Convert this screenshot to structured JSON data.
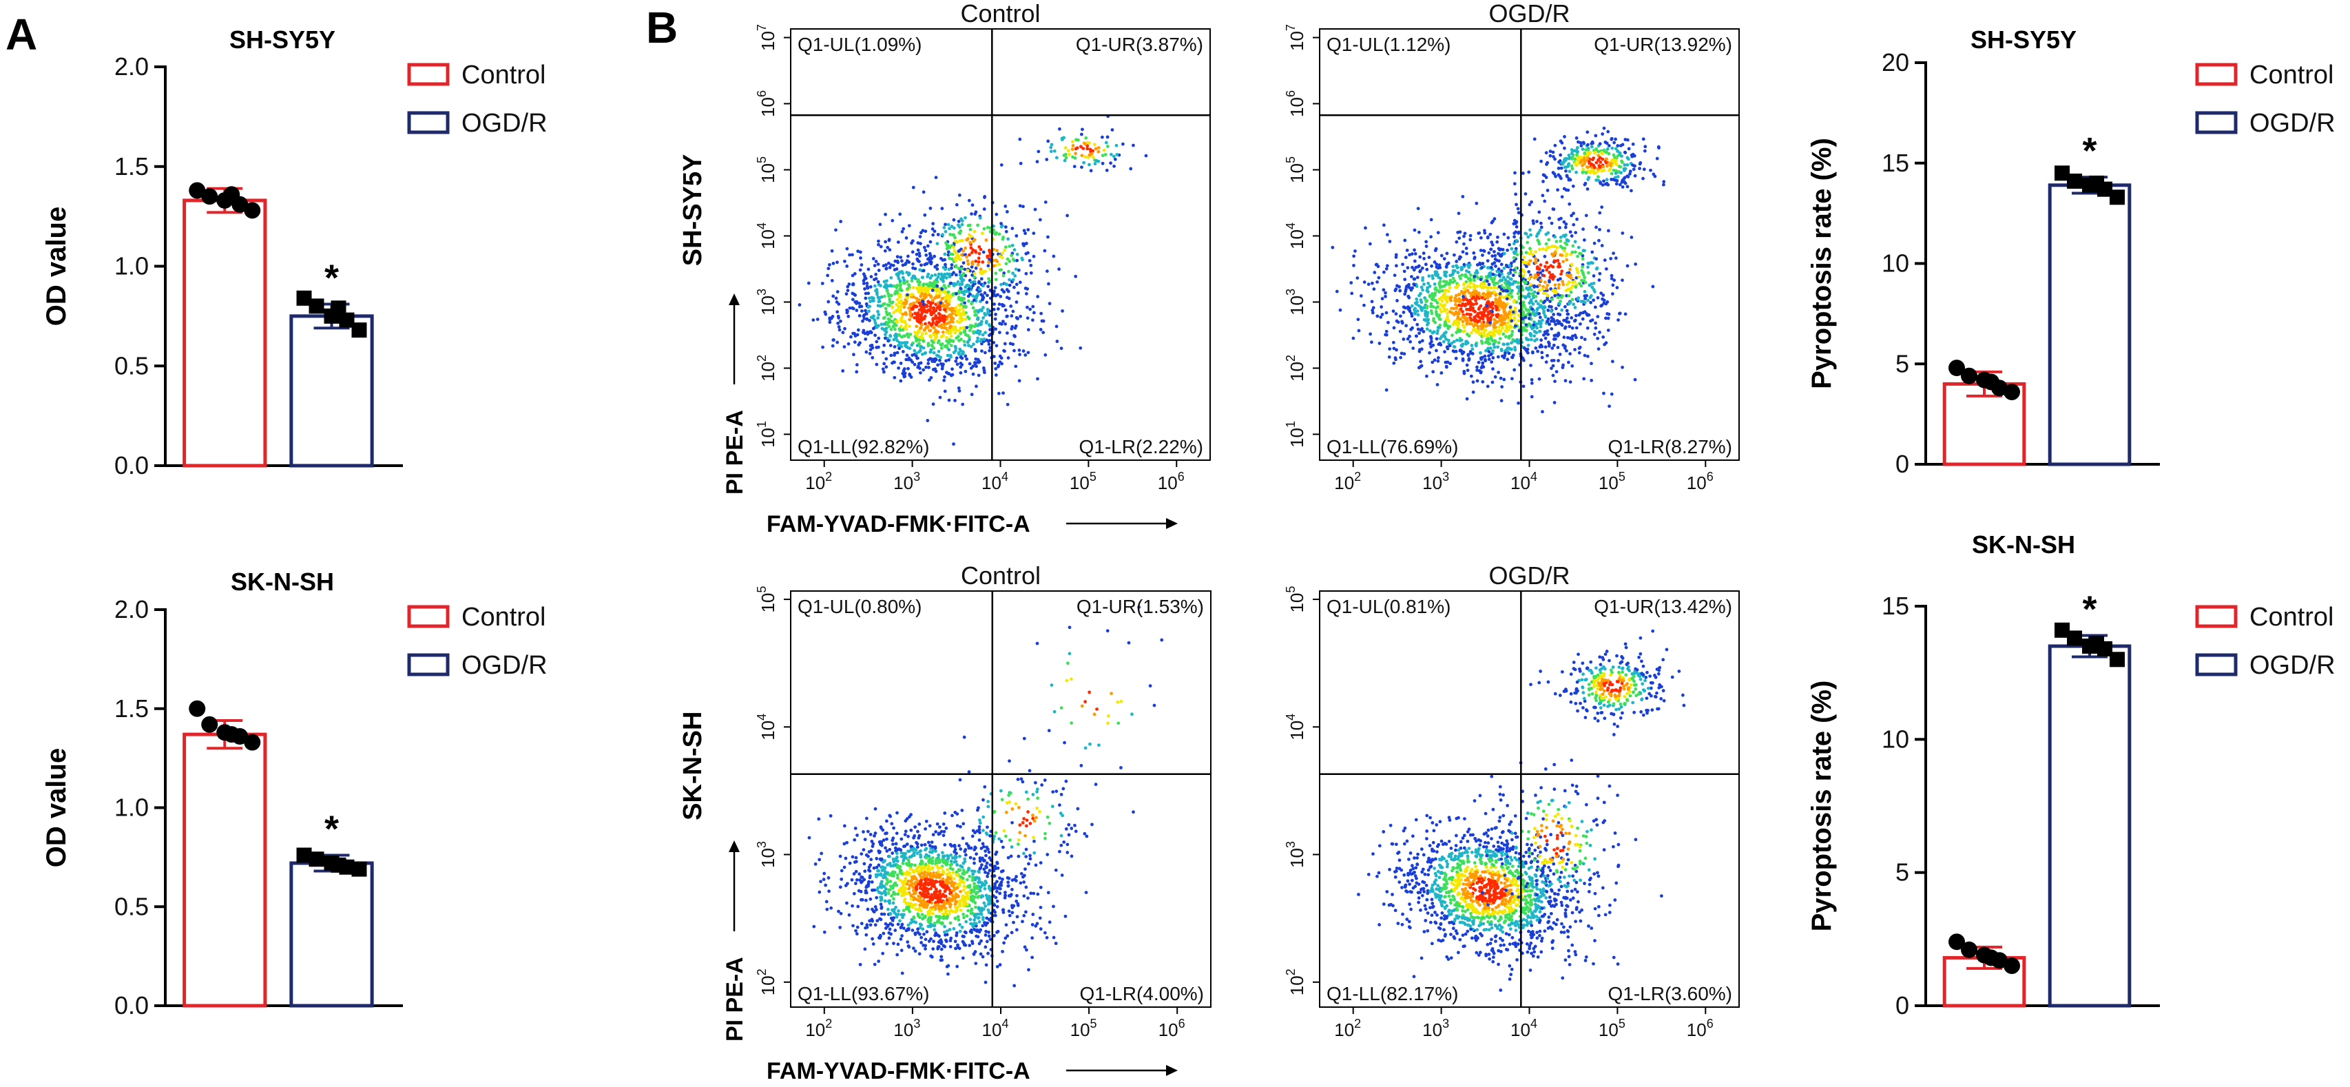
{
  "panels": {
    "a": "A",
    "b": "B"
  },
  "colors": {
    "control": "#e0262b",
    "ogdr": "#1f2a6b",
    "axis": "#000000"
  },
  "legend": {
    "control": "Control",
    "ogdr": "OGD/R"
  },
  "chart_data": [
    {
      "id": "od-shsy5y",
      "type": "bar",
      "title": "SH-SY5Y",
      "xlabel": "",
      "ylabel": "OD value",
      "ylim": [
        0,
        2.0
      ],
      "yticks": [
        "0.0",
        "0.5",
        "1.0",
        "1.5",
        "2.0"
      ],
      "categories": [
        "Control",
        "OGD/R"
      ],
      "values": [
        1.33,
        0.75
      ],
      "errors": [
        0.06,
        0.06
      ],
      "points": [
        [
          1.38,
          1.35,
          1.33,
          1.31,
          1.28,
          1.36
        ],
        [
          0.84,
          0.8,
          0.75,
          0.73,
          0.68,
          0.79
        ]
      ],
      "significance": [
        "",
        "*"
      ]
    },
    {
      "id": "od-sknsh",
      "type": "bar",
      "title": "SK-N-SH",
      "xlabel": "",
      "ylabel": "OD value",
      "ylim": [
        0,
        2.0
      ],
      "yticks": [
        "0.0",
        "0.5",
        "1.0",
        "1.5",
        "2.0"
      ],
      "categories": [
        "Control",
        "OGD/R"
      ],
      "values": [
        1.37,
        0.72
      ],
      "errors": [
        0.07,
        0.04
      ],
      "points": [
        [
          1.5,
          1.42,
          1.38,
          1.36,
          1.33,
          1.37
        ],
        [
          0.76,
          0.74,
          0.72,
          0.7,
          0.69,
          0.71
        ]
      ],
      "significance": [
        "",
        "*"
      ]
    },
    {
      "id": "pyro-shsy5y",
      "type": "bar",
      "title": "SH-SY5Y",
      "xlabel": "",
      "ylabel": "Pyroptosis rate (%)",
      "ylim": [
        0,
        20
      ],
      "yticks": [
        "0",
        "5",
        "10",
        "15",
        "20"
      ],
      "categories": [
        "Control",
        "OGD/R"
      ],
      "values": [
        4.0,
        13.9
      ],
      "errors": [
        0.6,
        0.4
      ],
      "points": [
        [
          4.8,
          4.4,
          4.2,
          3.8,
          3.6,
          4.1
        ],
        [
          14.5,
          14.1,
          13.9,
          13.7,
          13.3,
          14.0
        ]
      ],
      "significance": [
        "",
        "*"
      ]
    },
    {
      "id": "pyro-sknsh",
      "type": "bar",
      "title": "SK-N-SH",
      "xlabel": "",
      "ylabel": "Pyroptosis rate (%)",
      "ylim": [
        0,
        15
      ],
      "yticks": [
        "0",
        "5",
        "10",
        "15"
      ],
      "categories": [
        "Control",
        "OGD/R"
      ],
      "values": [
        1.8,
        13.5
      ],
      "errors": [
        0.4,
        0.4
      ],
      "points": [
        [
          2.4,
          2.1,
          1.9,
          1.7,
          1.5,
          1.8
        ],
        [
          14.1,
          13.8,
          13.5,
          13.4,
          13.0,
          13.6
        ]
      ],
      "significance": [
        "",
        "*"
      ]
    },
    {
      "id": "flow-shsy5y-control",
      "type": "scatter",
      "title": "Control",
      "row": "SH-SY5Y",
      "xlabel": "FAM-YVAD-FMK·FITC-A",
      "ylabel": "PI PE-A",
      "xdecades": [
        2,
        3,
        4,
        5,
        6
      ],
      "ydecades": [
        1,
        2,
        3,
        4,
        5,
        6,
        7
      ],
      "quadrants": {
        "UL": "Q1-UL(1.09%)",
        "UR": "Q1-UR(3.87%)",
        "LL": "Q1-LL(92.82%)",
        "LR": "Q1-LR(2.22%)"
      }
    },
    {
      "id": "flow-shsy5y-ogdr",
      "type": "scatter",
      "title": "OGD/R",
      "row": "SH-SY5Y",
      "xlabel": "",
      "ylabel": "",
      "xdecades": [
        2,
        3,
        4,
        5,
        6
      ],
      "ydecades": [
        1,
        2,
        3,
        4,
        5,
        6,
        7
      ],
      "quadrants": {
        "UL": "Q1-UL(1.12%)",
        "UR": "Q1-UR(13.92%)",
        "LL": "Q1-LL(76.69%)",
        "LR": "Q1-LR(8.27%)"
      }
    },
    {
      "id": "flow-sknsh-control",
      "type": "scatter",
      "title": "Control",
      "row": "SK-N-SH",
      "xlabel": "FAM-YVAD-FMK·FITC-A",
      "ylabel": "PI PE-A",
      "xdecades": [
        2,
        3,
        4,
        5,
        6
      ],
      "ydecades": [
        2,
        3,
        4,
        5
      ],
      "quadrants": {
        "UL": "Q1-UL(0.80%)",
        "UR": "Q1-UR(1.53%)",
        "LL": "Q1-LL(93.67%)",
        "LR": "Q1-LR(4.00%)"
      }
    },
    {
      "id": "flow-sknsh-ogdr",
      "type": "scatter",
      "title": "OGD/R",
      "row": "SK-N-SH",
      "xlabel": "",
      "ylabel": "",
      "xdecades": [
        2,
        3,
        4,
        5,
        6
      ],
      "ydecades": [
        2,
        3,
        4,
        5
      ],
      "quadrants": {
        "UL": "Q1-UL(0.81%)",
        "UR": "Q1-UR(13.42%)",
        "LL": "Q1-LL(82.17%)",
        "LR": "Q1-LR(3.60%)"
      }
    }
  ]
}
